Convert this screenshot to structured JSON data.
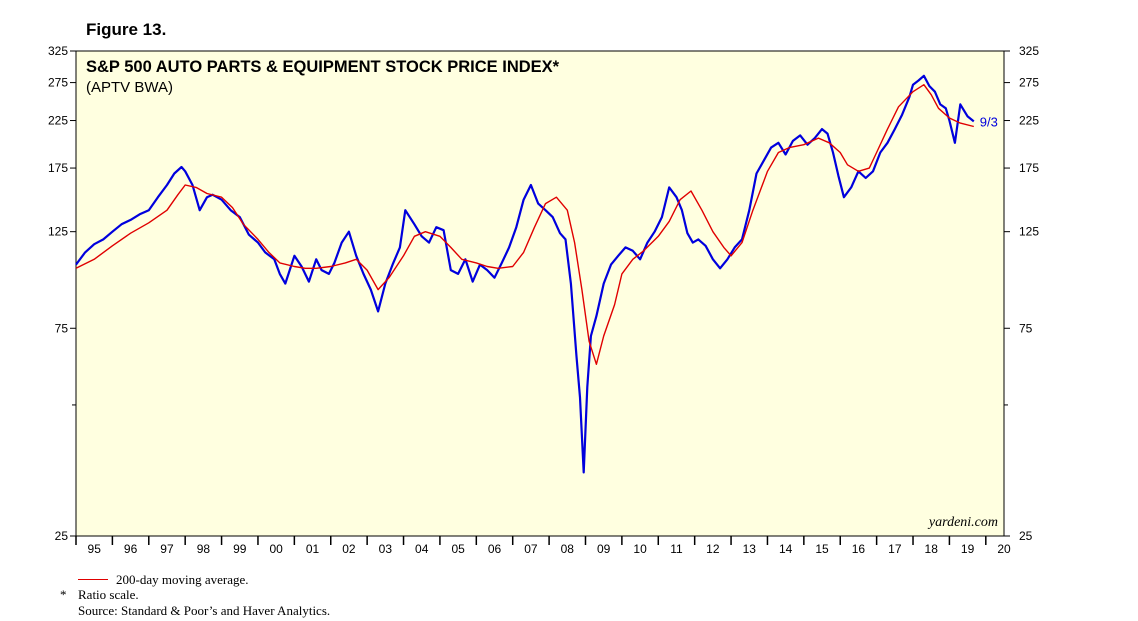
{
  "figure_label": "Figure 13.",
  "source_brand": "yardeni.com",
  "footer": {
    "legend_text": "200-day moving average.",
    "note_mark": "*",
    "note_text": "Ratio scale.",
    "source": "Source: Standard & Poor’s and Haver Analytics."
  },
  "colors": {
    "plot_bg": "#ffffe0",
    "price": "#0000dd",
    "ma": "#e00000",
    "text": "#000000"
  },
  "chart_data": {
    "type": "line",
    "scale": "log",
    "title": "S&P 500 AUTO PARTS & EQUIPMENT STOCK PRICE INDEX*",
    "subtitle": "(APTV BWA)",
    "x_range": [
      1995.0,
      2020.5
    ],
    "ylim": [
      25,
      325
    ],
    "y_ticks": [
      25,
      75,
      125,
      175,
      225,
      275,
      325
    ],
    "y_minor_ticks": [
      50
    ],
    "x_tick_labels": [
      "95",
      "96",
      "97",
      "98",
      "99",
      "00",
      "01",
      "02",
      "03",
      "04",
      "05",
      "06",
      "07",
      "08",
      "09",
      "10",
      "11",
      "12",
      "13",
      "14",
      "15",
      "16",
      "17",
      "18",
      "19",
      "20"
    ],
    "end_label": "9/3",
    "series": [
      {
        "name": "S&P 500 Auto Parts & Equipment Stock Price Index",
        "x": [
          1995.0,
          1995.25,
          1995.5,
          1995.75,
          1996.0,
          1996.25,
          1996.5,
          1996.75,
          1997.0,
          1997.25,
          1997.5,
          1997.7,
          1997.9,
          1998.0,
          1998.2,
          1998.4,
          1998.6,
          1998.75,
          1999.0,
          1999.25,
          1999.5,
          1999.75,
          2000.0,
          2000.2,
          2000.45,
          2000.6,
          2000.75,
          2001.0,
          2001.2,
          2001.4,
          2001.6,
          2001.75,
          2001.95,
          2002.1,
          2002.3,
          2002.5,
          2002.7,
          2002.9,
          2003.1,
          2003.3,
          2003.5,
          2003.7,
          2003.9,
          2004.05,
          2004.3,
          2004.5,
          2004.7,
          2004.9,
          2005.1,
          2005.3,
          2005.5,
          2005.7,
          2005.9,
          2006.1,
          2006.3,
          2006.5,
          2006.7,
          2006.9,
          2007.1,
          2007.3,
          2007.5,
          2007.7,
          2007.9,
          2008.1,
          2008.3,
          2008.45,
          2008.6,
          2008.75,
          2008.85,
          2008.95,
          2009.05,
          2009.15,
          2009.3,
          2009.5,
          2009.7,
          2009.9,
          2010.1,
          2010.3,
          2010.5,
          2010.7,
          2010.9,
          2011.1,
          2011.3,
          2011.5,
          2011.65,
          2011.8,
          2011.95,
          2012.1,
          2012.3,
          2012.5,
          2012.7,
          2012.9,
          2013.1,
          2013.3,
          2013.5,
          2013.7,
          2013.9,
          2014.1,
          2014.3,
          2014.5,
          2014.7,
          2014.9,
          2015.1,
          2015.3,
          2015.5,
          2015.65,
          2015.8,
          2015.95,
          2016.1,
          2016.3,
          2016.5,
          2016.7,
          2016.9,
          2017.1,
          2017.3,
          2017.5,
          2017.7,
          2017.9,
          2018.0,
          2018.15,
          2018.3,
          2018.45,
          2018.6,
          2018.75,
          2018.9,
          2019.0,
          2019.15,
          2019.3,
          2019.5,
          2019.67
        ],
        "values": [
          105,
          112,
          117,
          120,
          125,
          130,
          133,
          137,
          140,
          150,
          160,
          170,
          176,
          172,
          160,
          140,
          150,
          152,
          148,
          140,
          135,
          123,
          118,
          112,
          108,
          100,
          95,
          110,
          104,
          96,
          108,
          102,
          100,
          106,
          118,
          125,
          110,
          100,
          92,
          82,
          95,
          105,
          115,
          140,
          130,
          122,
          118,
          128,
          126,
          102,
          100,
          108,
          96,
          105,
          102,
          98,
          106,
          115,
          128,
          148,
          160,
          145,
          140,
          135,
          124,
          120,
          95,
          65,
          52,
          35,
          55,
          72,
          80,
          95,
          105,
          110,
          115,
          113,
          108,
          118,
          125,
          135,
          158,
          150,
          140,
          124,
          118,
          120,
          116,
          108,
          103,
          108,
          115,
          120,
          140,
          170,
          182,
          195,
          200,
          188,
          202,
          208,
          198,
          205,
          215,
          210,
          190,
          168,
          150,
          158,
          172,
          166,
          172,
          190,
          200,
          215,
          232,
          255,
          272,
          278,
          285,
          270,
          262,
          245,
          240,
          225,
          200,
          245,
          230,
          224
        ]
      },
      {
        "name": "200-day moving average",
        "x": [
          1995.0,
          1995.5,
          1996.0,
          1996.5,
          1997.0,
          1997.5,
          1997.8,
          1998.0,
          1998.3,
          1998.6,
          1999.0,
          1999.3,
          1999.6,
          2000.0,
          2000.3,
          2000.6,
          2001.0,
          2001.3,
          2001.6,
          2002.0,
          2002.4,
          2002.7,
          2003.0,
          2003.3,
          2003.6,
          2004.0,
          2004.3,
          2004.6,
          2005.0,
          2005.3,
          2005.6,
          2006.0,
          2006.3,
          2006.6,
          2007.0,
          2007.3,
          2007.6,
          2007.9,
          2008.2,
          2008.5,
          2008.7,
          2008.9,
          2009.1,
          2009.3,
          2009.5,
          2009.8,
          2010.0,
          2010.3,
          2010.6,
          2011.0,
          2011.3,
          2011.6,
          2011.9,
          2012.2,
          2012.5,
          2012.8,
          2013.0,
          2013.3,
          2013.6,
          2014.0,
          2014.3,
          2014.6,
          2015.0,
          2015.4,
          2015.7,
          2016.0,
          2016.2,
          2016.5,
          2016.8,
          2017.0,
          2017.3,
          2017.6,
          2018.0,
          2018.3,
          2018.5,
          2018.7,
          2019.0,
          2019.3,
          2019.67
        ],
        "values": [
          103,
          108,
          116,
          124,
          131,
          140,
          152,
          160,
          158,
          153,
          150,
          142,
          130,
          120,
          112,
          106,
          104,
          103,
          103,
          104,
          106,
          108,
          102,
          92,
          98,
          110,
          122,
          125,
          122,
          115,
          108,
          106,
          104,
          103,
          104,
          112,
          128,
          145,
          150,
          140,
          118,
          92,
          70,
          62,
          72,
          85,
          100,
          108,
          113,
          122,
          132,
          148,
          155,
          140,
          125,
          115,
          110,
          118,
          140,
          172,
          190,
          195,
          198,
          205,
          200,
          190,
          178,
          172,
          175,
          190,
          215,
          242,
          262,
          272,
          258,
          240,
          228,
          222,
          218
        ]
      }
    ]
  }
}
